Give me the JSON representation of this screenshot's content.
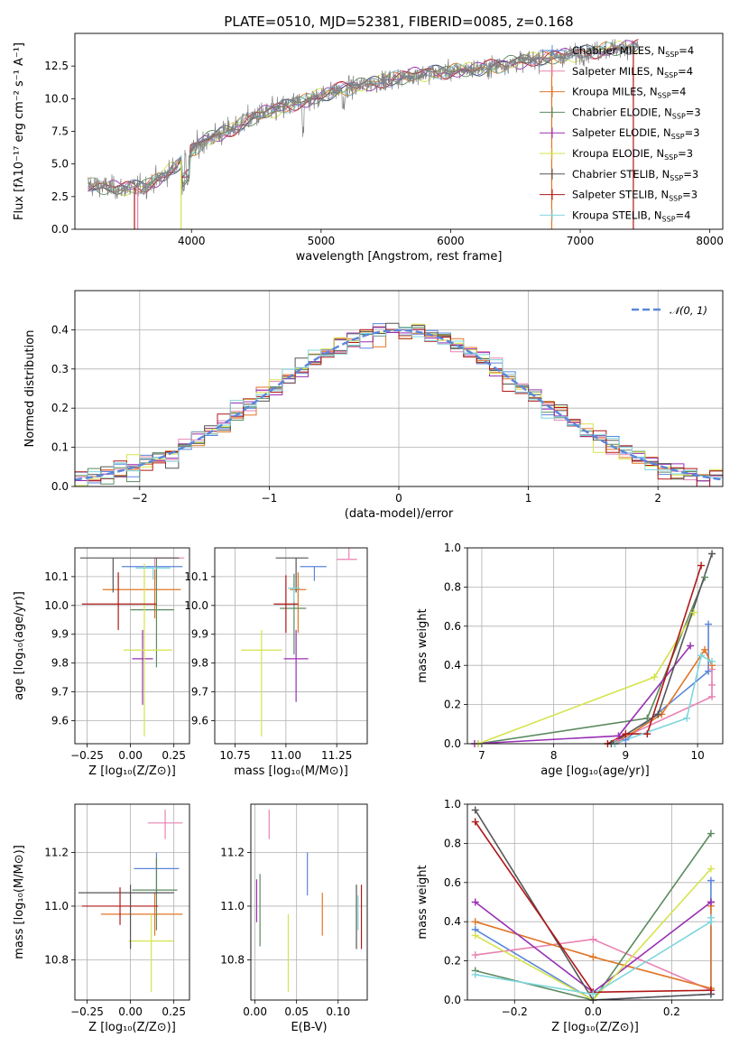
{
  "colors": {
    "Chabrier MILES": "#5b86db",
    "Salpeter MILES": "#e882b2",
    "Kroupa MILES": "#e07626",
    "Chabrier ELODIE": "#5b8a5f",
    "Salpeter ELODIE": "#9830b4",
    "Kroupa ELODIE": "#d5e34c",
    "Chabrier STELIB": "#555555",
    "Salpeter STELIB": "#b01818",
    "Kroupa STELIB": "#7fd6dc",
    "data": "#808080"
  },
  "chart_data": [
    {
      "id": "spectrum",
      "type": "line",
      "title": "PLATE=0510, MJD=52381, FIBERID=0085, z=0.168",
      "xlabel": "wavelength [Angstrom, rest frame]",
      "ylabel": "Flux [fλ10⁻¹⁷ erg cm⁻² s⁻¹ A⁻¹]",
      "xlim": [
        3100,
        8100
      ],
      "ylim": [
        0,
        15
      ],
      "xticks": [
        "4000",
        "5000",
        "6000",
        "7000",
        "8000"
      ],
      "yticks": [
        "0.0",
        "2.5",
        "5.0",
        "7.5",
        "10.0",
        "12.5"
      ],
      "continuum": {
        "x": [
          3200,
          3450,
          3650,
          3800,
          3950,
          4100,
          4300,
          4500,
          4700,
          4900,
          5100,
          5300,
          5500,
          5700,
          5900,
          6100,
          6300,
          6500,
          6700,
          6900,
          7100,
          7300,
          7450
        ],
        "y": [
          3.4,
          3.1,
          3.3,
          4.2,
          5.5,
          6.8,
          7.6,
          8.7,
          9.3,
          9.9,
          10.6,
          11.0,
          11.4,
          11.8,
          12.0,
          12.2,
          12.4,
          12.8,
          13.1,
          13.3,
          13.6,
          13.9,
          14.0
        ]
      },
      "legend": [
        "Chabrier MILES, N_SSP=4",
        "Salpeter MILES, N_SSP=4",
        "Kroupa MILES, N_SSP=4",
        "Chabrier ELODIE, N_SSP=3",
        "Salpeter ELODIE, N_SSP=3",
        "Kroupa ELODIE, N_SSP=3",
        "Chabrier STELIB, N_SSP=3",
        "Salpeter STELIB, N_SSP=3",
        "Kroupa STELIB, N_SSP=4"
      ],
      "legend_position": "right"
    },
    {
      "id": "residuals",
      "type": "bar",
      "xlabel": "(data-model)/error",
      "ylabel": "Normed distribution",
      "xlim": [
        -2.5,
        2.5
      ],
      "ylim": [
        0,
        0.5
      ],
      "xticks": [
        "−2",
        "−1",
        "0",
        "1",
        "2"
      ],
      "yticks": [
        "0.0",
        "0.1",
        "0.2",
        "0.3",
        "0.4"
      ],
      "bin_width": 0.1,
      "reference_label": "𝒩(0, 1)",
      "legend_position": "top-right"
    },
    {
      "id": "age_vs_Z",
      "type": "scatter",
      "xlabel": "Z [log₁₀(Z/Z⊙)]",
      "ylabel": "age  [log₁₀(age/yr)]",
      "xlim": [
        -0.32,
        0.34
      ],
      "ylim": [
        9.52,
        10.2
      ],
      "xticks": [
        "−0.25",
        "0.00",
        "0.25"
      ],
      "yticks": [
        "9.6",
        "9.7",
        "9.8",
        "9.9",
        "10.0",
        "10.1"
      ],
      "points": [
        {
          "model": "Chabrier MILES",
          "x": 0.15,
          "xerr": [
            0.2,
            0.15
          ],
          "y": 10.135,
          "yerr": [
            0.05,
            0.0
          ]
        },
        {
          "model": "Salpeter MILES",
          "x": 0.14,
          "xerr": [
            0.0,
            0.17
          ],
          "y": 10.165,
          "yerr": [
            0.03,
            0.0
          ]
        },
        {
          "model": "Kroupa MILES",
          "x": 0.14,
          "xerr": [
            0.3,
            0.15
          ],
          "y": 10.055,
          "yerr": [
            0.1,
            0.07
          ]
        },
        {
          "model": "Chabrier ELODIE",
          "x": 0.15,
          "xerr": [
            0.15,
            0.1
          ],
          "y": 9.985,
          "yerr": [
            0.2,
            0.18
          ]
        },
        {
          "model": "Salpeter ELODIE",
          "x": 0.07,
          "xerr": [
            0.06,
            0.06
          ],
          "y": 9.815,
          "yerr": [
            0.16,
            0.1
          ]
        },
        {
          "model": "Kroupa ELODIE",
          "x": 0.08,
          "xerr": [
            0.12,
            0.16
          ],
          "y": 9.845,
          "yerr": [
            0.3,
            0.3
          ]
        },
        {
          "model": "Chabrier STELIB",
          "x": -0.1,
          "xerr": [
            0.19,
            0.38
          ],
          "y": 10.165,
          "yerr": [
            0.12,
            0.0
          ]
        },
        {
          "model": "Salpeter STELIB",
          "x": -0.07,
          "xerr": [
            0.21,
            0.22
          ],
          "y": 10.005,
          "yerr": [
            0.09,
            0.11
          ]
        },
        {
          "model": "Kroupa STELIB",
          "x": 0.13,
          "xerr": [
            0.1,
            0.1
          ],
          "y": 10.13,
          "yerr": [
            0.04,
            0.0
          ]
        }
      ]
    },
    {
      "id": "age_vs_mass",
      "type": "scatter",
      "xlabel": "mass [log₁₀(M/M⊙)]",
      "ylabel": "",
      "xlim": [
        10.65,
        11.4
      ],
      "ylim": [
        9.52,
        10.2
      ],
      "xticks": [
        "10.75",
        "11.00",
        "11.25"
      ],
      "yticks": [
        "9.6",
        "9.7",
        "9.8",
        "9.9",
        "10.0",
        "10.1"
      ],
      "points": [
        {
          "model": "Chabrier MILES",
          "x": 11.14,
          "xerr": [
            0.07,
            0.06
          ],
          "y": 10.135,
          "yerr": [
            0.05,
            0.0
          ]
        },
        {
          "model": "Salpeter MILES",
          "x": 11.31,
          "xerr": [
            0.06,
            0.04
          ],
          "y": 10.16,
          "yerr": [
            0.0,
            0.12
          ]
        },
        {
          "model": "Kroupa MILES",
          "x": 11.06,
          "xerr": [
            0.04,
            0.04
          ],
          "y": 10.055,
          "yerr": [
            0.15,
            0.06
          ]
        },
        {
          "model": "Chabrier ELODIE",
          "x": 11.04,
          "xerr": [
            0.07,
            0.06
          ],
          "y": 9.99,
          "yerr": [
            0.16,
            0.12
          ]
        },
        {
          "model": "Salpeter ELODIE",
          "x": 11.05,
          "xerr": [
            0.06,
            0.06
          ],
          "y": 9.815,
          "yerr": [
            0.15,
            0.1
          ]
        },
        {
          "model": "Kroupa ELODIE",
          "x": 10.88,
          "xerr": [
            0.1,
            0.1
          ],
          "y": 9.845,
          "yerr": [
            0.3,
            0.07
          ]
        },
        {
          "model": "Chabrier STELIB",
          "x": 11.05,
          "xerr": [
            0.1,
            0.06
          ],
          "y": 10.165,
          "yerr": [
            0.12,
            0.0
          ]
        },
        {
          "model": "Salpeter STELIB",
          "x": 11.0,
          "xerr": [
            0.06,
            0.06
          ],
          "y": 10.005,
          "yerr": [
            0.1,
            0.1
          ]
        },
        {
          "model": "Kroupa STELIB",
          "x": 11.04,
          "xerr": [
            0.03,
            0.03
          ],
          "y": 10.06,
          "yerr": [
            0.05,
            0.0
          ]
        }
      ]
    },
    {
      "id": "massweight_vs_age",
      "type": "line",
      "xlabel": "age  [log₁₀(age/yr)]",
      "ylabel": "mass weight",
      "xlim": [
        6.8,
        10.35
      ],
      "ylim": [
        0,
        1
      ],
      "xticks": [
        "7",
        "8",
        "9",
        "10"
      ],
      "yticks": [
        "0.0",
        "0.2",
        "0.4",
        "0.6",
        "0.8",
        "1.0"
      ],
      "series": [
        {
          "model": "Chabrier MILES",
          "x": [
            8.85,
            9.0,
            10.15,
            10.15
          ],
          "y": [
            0.0,
            0.02,
            0.37,
            0.61
          ]
        },
        {
          "model": "Salpeter MILES",
          "x": [
            8.9,
            10.2,
            10.2,
            10.2
          ],
          "y": [
            0.02,
            0.24,
            0.3,
            0.38
          ]
        },
        {
          "model": "Kroupa MILES",
          "x": [
            8.85,
            9.5,
            10.1,
            10.2
          ],
          "y": [
            0.0,
            0.15,
            0.48,
            0.4
          ]
        },
        {
          "model": "Chabrier ELODIE",
          "x": [
            6.95,
            9.3,
            10.1
          ],
          "y": [
            0.0,
            0.13,
            0.85
          ]
        },
        {
          "model": "Salpeter ELODIE",
          "x": [
            6.9,
            8.9,
            9.9
          ],
          "y": [
            0.0,
            0.04,
            0.5
          ]
        },
        {
          "model": "Kroupa ELODIE",
          "x": [
            6.95,
            9.4,
            9.95
          ],
          "y": [
            0.0,
            0.34,
            0.67
          ]
        },
        {
          "model": "Chabrier STELIB",
          "x": [
            8.8,
            9.45,
            10.2
          ],
          "y": [
            0.0,
            0.15,
            0.97
          ]
        },
        {
          "model": "Salpeter STELIB",
          "x": [
            8.75,
            9.0,
            9.3,
            10.05
          ],
          "y": [
            0.0,
            0.05,
            0.05,
            0.91
          ]
        },
        {
          "model": "Kroupa STELIB",
          "x": [
            8.85,
            9.85,
            10.05,
            10.2
          ],
          "y": [
            0.0,
            0.13,
            0.45,
            0.42
          ]
        }
      ]
    },
    {
      "id": "mass_vs_Z",
      "type": "scatter",
      "xlabel": "Z [log₁₀(Z/Z⊙)]",
      "ylabel": "mass [log₁₀(M/M⊙)]",
      "xlim": [
        -0.32,
        0.34
      ],
      "ylim": [
        10.65,
        11.38
      ],
      "xticks": [
        "−0.25",
        "0.00",
        "0.25"
      ],
      "yticks": [
        "10.8",
        "11.0",
        "11.2"
      ],
      "points": [
        {
          "model": "Chabrier MILES",
          "x": 0.15,
          "xerr": [
            0.13,
            0.13
          ],
          "y": 11.14,
          "yerr": [
            0.1,
            0.06
          ]
        },
        {
          "model": "Salpeter MILES",
          "x": 0.2,
          "xerr": [
            0.1,
            0.1
          ],
          "y": 11.31,
          "yerr": [
            0.06,
            0.05
          ]
        },
        {
          "model": "Kroupa MILES",
          "x": 0.14,
          "xerr": [
            0.31,
            0.16
          ],
          "y": 10.97,
          "yerr": [
            0.08,
            0.08
          ]
        },
        {
          "model": "Chabrier ELODIE",
          "x": 0.15,
          "xerr": [
            0.14,
            0.12
          ],
          "y": 11.06,
          "yerr": [
            0.15,
            0.12
          ]
        },
        {
          "model": "Salpeter ELODIE",
          "x": 0.0,
          "xerr": [
            0.0,
            0.0
          ],
          "y": 11.0,
          "yerr": [
            0.0,
            0.0
          ]
        },
        {
          "model": "Kroupa ELODIE",
          "x": 0.12,
          "xerr": [
            0.13,
            0.13
          ],
          "y": 10.87,
          "yerr": [
            0.19,
            0.1
          ]
        },
        {
          "model": "Chabrier STELIB",
          "x": 0.0,
          "xerr": [
            0.3,
            0.25
          ],
          "y": 11.05,
          "yerr": [
            0.21,
            0.03
          ]
        },
        {
          "model": "Salpeter STELIB",
          "x": -0.06,
          "xerr": [
            0.22,
            0.22
          ],
          "y": 11.0,
          "yerr": [
            0.07,
            0.07
          ]
        },
        {
          "model": "Kroupa STELIB",
          "x": 0.0,
          "xerr": [
            0.0,
            0.0
          ],
          "y": 11.0,
          "yerr": [
            0.0,
            0.0
          ]
        }
      ]
    },
    {
      "id": "mass_vs_ebv",
      "type": "scatter",
      "xlabel": "E(B-V)",
      "ylabel": "",
      "xlim": [
        -0.005,
        0.135
      ],
      "ylim": [
        10.65,
        11.38
      ],
      "xticks": [
        "0.00",
        "0.05",
        "0.10"
      ],
      "yticks": [
        "10.8",
        "11.0",
        "11.2"
      ],
      "points": [
        {
          "model": "Chabrier MILES",
          "x": 0.063,
          "yerr": [
            0.1,
            0.06
          ],
          "y": 11.14
        },
        {
          "model": "Salpeter MILES",
          "x": 0.017,
          "yerr": [
            0.06,
            0.05
          ],
          "y": 11.31
        },
        {
          "model": "Kroupa MILES",
          "x": 0.081,
          "yerr": [
            0.08,
            0.08
          ],
          "y": 10.97
        },
        {
          "model": "Chabrier ELODIE",
          "x": 0.006,
          "yerr": [
            0.15,
            0.12
          ],
          "y": 11.0
        },
        {
          "model": "Salpeter ELODIE",
          "x": 0.002,
          "yerr": [
            0.08,
            0.08
          ],
          "y": 11.02
        },
        {
          "model": "Kroupa ELODIE",
          "x": 0.04,
          "yerr": [
            0.19,
            0.1
          ],
          "y": 10.87
        },
        {
          "model": "Chabrier STELIB",
          "x": 0.122,
          "yerr": [
            0.21,
            0.03
          ],
          "y": 11.05
        },
        {
          "model": "Salpeter STELIB",
          "x": 0.128,
          "yerr": [
            0.16,
            0.08
          ],
          "y": 11.0
        },
        {
          "model": "Kroupa STELIB",
          "x": 0.124,
          "yerr": [
            0.08,
            0.05
          ],
          "y": 10.99
        }
      ]
    },
    {
      "id": "massweight_vs_Z",
      "type": "line",
      "xlabel": "Z [log₁₀(Z/Z⊙)]",
      "ylabel": "mass weight",
      "xlim": [
        -0.32,
        0.33
      ],
      "ylim": [
        0,
        1
      ],
      "xticks": [
        "−0.2",
        "0.0",
        "0.2"
      ],
      "yticks": [
        "0.0",
        "0.2",
        "0.4",
        "0.6",
        "0.8",
        "1.0"
      ],
      "series": [
        {
          "model": "Chabrier MILES",
          "x": [
            -0.3,
            0.0,
            0.3,
            0.3
          ],
          "y": [
            0.36,
            0.0,
            0.03,
            0.61
          ]
        },
        {
          "model": "Salpeter MILES",
          "x": [
            -0.3,
            0.0,
            0.3
          ],
          "y": [
            0.23,
            0.31,
            0.05
          ]
        },
        {
          "model": "Kroupa MILES",
          "x": [
            -0.3,
            0.0,
            0.3,
            0.3
          ],
          "y": [
            0.4,
            0.22,
            0.06,
            0.48
          ]
        },
        {
          "model": "Chabrier ELODIE",
          "x": [
            -0.3,
            0.0,
            0.3
          ],
          "y": [
            0.15,
            0.0,
            0.85
          ]
        },
        {
          "model": "Salpeter ELODIE",
          "x": [
            -0.3,
            0.0,
            0.3,
            0.3
          ],
          "y": [
            0.5,
            0.04,
            0.5,
            0.5
          ]
        },
        {
          "model": "Kroupa ELODIE",
          "x": [
            -0.3,
            0.0,
            0.3
          ],
          "y": [
            0.33,
            0.0,
            0.67
          ]
        },
        {
          "model": "Chabrier STELIB",
          "x": [
            -0.3,
            0.0,
            0.3
          ],
          "y": [
            0.97,
            0.0,
            0.03
          ]
        },
        {
          "model": "Salpeter STELIB",
          "x": [
            -0.3,
            0.0,
            0.3
          ],
          "y": [
            0.91,
            0.04,
            0.05
          ]
        },
        {
          "model": "Kroupa STELIB",
          "x": [
            -0.3,
            0.0,
            0.3,
            0.3
          ],
          "y": [
            0.13,
            0.03,
            0.4,
            0.42
          ]
        }
      ]
    }
  ]
}
